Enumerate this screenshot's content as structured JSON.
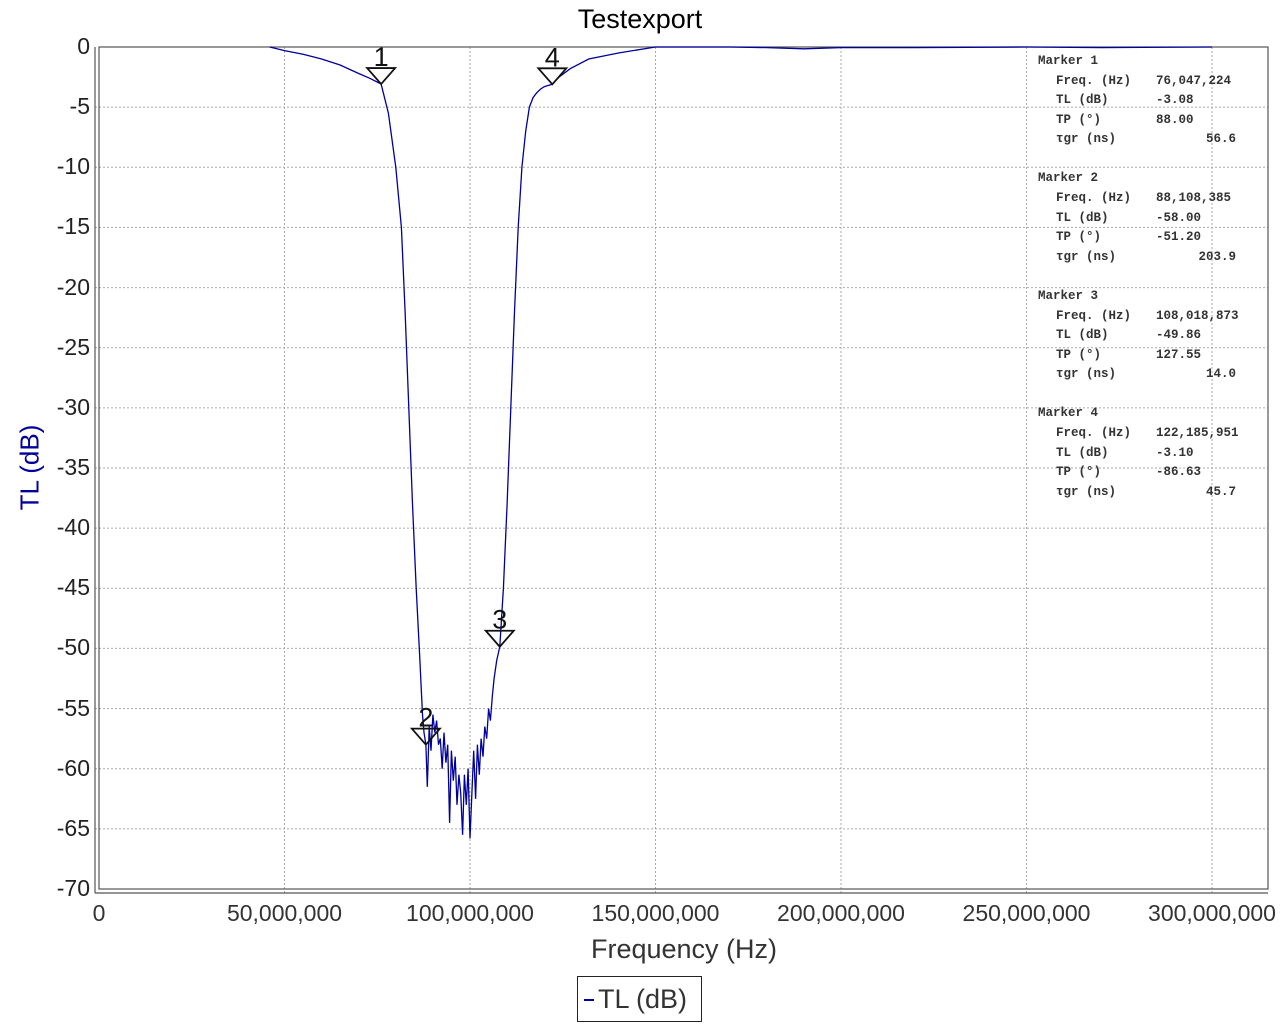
{
  "chart_data": {
    "type": "line",
    "title": "Testexport",
    "xlabel": "Frequency (Hz)",
    "ylabel": "TL (dB)",
    "xlim": [
      0,
      316000000
    ],
    "ylim": [
      -70,
      0
    ],
    "grid": true,
    "legend_position": "bottom-center",
    "x_ticks": [
      0,
      50000000,
      100000000,
      150000000,
      200000000,
      250000000,
      300000000
    ],
    "x_tick_labels": [
      "0",
      "50,000,000",
      "100,000,000",
      "150,000,000",
      "200,000,000",
      "250,000,000",
      "300,000,000"
    ],
    "y_ticks": [
      0,
      -5,
      -10,
      -15,
      -20,
      -25,
      -30,
      -35,
      -40,
      -45,
      -50,
      -55,
      -60,
      -65,
      -70
    ],
    "y_tick_labels": [
      "0",
      "-5",
      "-10",
      "-15",
      "-20",
      "-25",
      "-30",
      "-35",
      "-40",
      "-45",
      "-50",
      "-55",
      "-60",
      "-65",
      "-70"
    ],
    "series": [
      {
        "name": "TL (dB)",
        "color": "#00009c",
        "x": [
          46000000,
          50000000,
          55000000,
          60000000,
          65000000,
          70000000,
          73000000,
          76047224,
          78000000,
          80000000,
          81500000,
          82500000,
          83500000,
          84500000,
          85500000,
          86500000,
          87200000,
          87600000,
          88108385,
          88500000,
          89000000,
          89500000,
          90000000,
          90500000,
          91000000,
          91500000,
          92000000,
          92500000,
          93000000,
          93500000,
          94000000,
          94500000,
          95000000,
          95500000,
          96000000,
          96500000,
          97000000,
          97500000,
          98000000,
          98500000,
          99000000,
          99500000,
          100000000,
          100500000,
          101000000,
          101500000,
          102000000,
          102500000,
          103000000,
          103500000,
          104000000,
          104500000,
          105000000,
          105500000,
          106000000,
          106500000,
          107200000,
          108018873,
          109000000,
          110000000,
          111000000,
          112000000,
          113000000,
          114000000,
          115000000,
          116000000,
          117000000,
          118000000,
          119000000,
          120000000,
          121000000,
          122185951,
          124000000,
          127000000,
          132000000,
          140000000,
          150000000,
          170000000,
          180000000,
          190000000,
          195000000,
          200000000,
          220000000,
          250000000,
          270000000,
          300000000
        ],
        "y": [
          0.0,
          -0.3,
          -0.6,
          -1.0,
          -1.5,
          -2.2,
          -2.6,
          -3.08,
          -5.5,
          -10.0,
          -15.0,
          -22.0,
          -30.0,
          -38.0,
          -45.0,
          -51.0,
          -55.5,
          -57.0,
          -58.0,
          -61.5,
          -56.5,
          -58.5,
          -55.5,
          -57.0,
          -56.0,
          -58.0,
          -57.5,
          -60.0,
          -57.0,
          -59.5,
          -58.0,
          -64.5,
          -58.5,
          -61.0,
          -59.0,
          -63.0,
          -60.5,
          -62.0,
          -65.5,
          -60.5,
          -63.0,
          -60.0,
          -65.8,
          -62.0,
          -58.5,
          -62.5,
          -58.0,
          -60.5,
          -57.5,
          -59.0,
          -56.5,
          -57.5,
          -55.0,
          -56.0,
          -54.0,
          -52.5,
          -51.0,
          -49.86,
          -45.0,
          -38.0,
          -30.0,
          -22.0,
          -15.0,
          -10.0,
          -7.0,
          -5.0,
          -4.2,
          -3.8,
          -3.5,
          -3.3,
          -3.2,
          -3.1,
          -2.5,
          -1.8,
          -1.0,
          -0.5,
          0.0,
          0.0,
          -0.05,
          -0.15,
          -0.1,
          -0.05,
          -0.05,
          0.0,
          -0.05,
          0.0
        ]
      }
    ],
    "markers": [
      {
        "id": "1",
        "freq_hz": 76047224,
        "tl_db": -3.08,
        "tp_deg": 88.0,
        "tgr_ns": 56.6
      },
      {
        "id": "2",
        "freq_hz": 88108385,
        "tl_db": -58.0,
        "tp_deg": -51.2,
        "tgr_ns": 203.9
      },
      {
        "id": "3",
        "freq_hz": 108018873,
        "tl_db": -49.86,
        "tp_deg": 127.55,
        "tgr_ns": 14.0
      },
      {
        "id": "4",
        "freq_hz": 122185951,
        "tl_db": -3.1,
        "tp_deg": -86.63,
        "tgr_ns": 45.7
      }
    ]
  },
  "title": "Testexport",
  "axes": {
    "xlabel": "Frequency (Hz)",
    "ylabel": "TL (dB)"
  },
  "legend": {
    "label": "TL (dB)"
  },
  "marker_panel": {
    "labels": {
      "freq": "Freq. (Hz)",
      "tl": "TL (dB)",
      "tp": "TP (°)",
      "tgr": "τgr (ns)"
    },
    "markers": [
      {
        "title": "Marker 1",
        "freq": "76,047,224",
        "tl": "-3.08",
        "tp": "88.00",
        "tgr": "56.6"
      },
      {
        "title": "Marker 2",
        "freq": "88,108,385",
        "tl": "-58.00",
        "tp": "-51.20",
        "tgr": "203.9"
      },
      {
        "title": "Marker 3",
        "freq": "108,018,873",
        "tl": "-49.86",
        "tp": "127.55",
        "tgr": "14.0"
      },
      {
        "title": "Marker 4",
        "freq": "122,185,951",
        "tl": "-3.10",
        "tp": "-86.63",
        "tgr": "45.7"
      }
    ]
  }
}
